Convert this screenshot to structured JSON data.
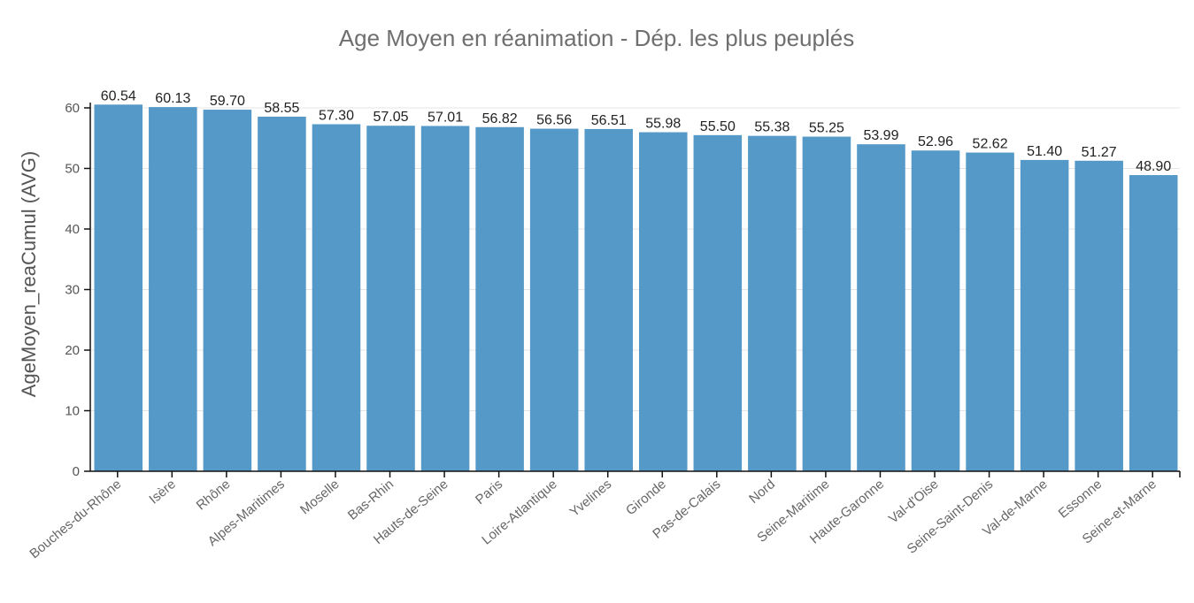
{
  "chart_data": {
    "type": "bar",
    "title": "Age Moyen en réanimation  - Dép. les plus peuplés",
    "xlabel": "",
    "ylabel": "AgeMoyen_reaCumul (AVG)",
    "ylim": [
      0,
      60
    ],
    "yticks": [
      0,
      10,
      20,
      30,
      40,
      50,
      60
    ],
    "grid": true,
    "color": "#5499c7",
    "categories": [
      "Bouches-du-Rhône",
      "Isère",
      "Rhône",
      "Alpes-Maritimes",
      "Moselle",
      "Bas-Rhin",
      "Hauts-de-Seine",
      "Paris",
      "Loire-Atlantique",
      "Yvelines",
      "Gironde",
      "Pas-de-Calais",
      "Nord",
      "Seine-Maritime",
      "Haute-Garonne",
      "Val-d'Oise",
      "Seine-Saint-Denis",
      "Val-de-Marne",
      "Essonne",
      "Seine-et-Marne"
    ],
    "values": [
      60.54,
      60.13,
      59.7,
      58.55,
      57.3,
      57.05,
      57.01,
      56.82,
      56.56,
      56.51,
      55.98,
      55.5,
      55.38,
      55.25,
      53.99,
      52.96,
      52.62,
      51.4,
      51.27,
      48.9
    ],
    "value_labels": [
      "60.54",
      "60.13",
      "59.70",
      "58.55",
      "57.30",
      "57.05",
      "57.01",
      "56.82",
      "56.56",
      "56.51",
      "55.98",
      "55.50",
      "55.38",
      "55.25",
      "53.99",
      "52.96",
      "52.62",
      "51.40",
      "51.27",
      "48.90"
    ]
  }
}
